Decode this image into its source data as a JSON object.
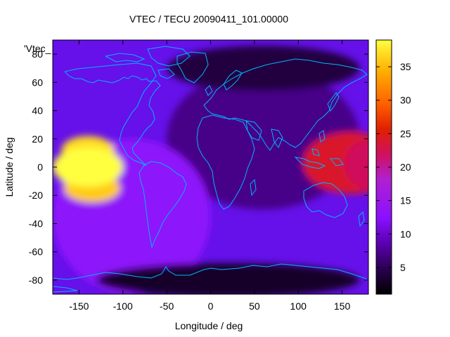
{
  "chart_data": {
    "type": "heatmap",
    "title": "VTEC / TECU 20090411_101.00000",
    "corner_label": "'Vtec_",
    "xlabel": "Longitude / deg",
    "ylabel": "Latitude / deg",
    "xlim": [
      -180,
      180
    ],
    "ylim": [
      -90,
      90
    ],
    "x_ticks": [
      -150,
      -100,
      -50,
      0,
      50,
      100,
      150
    ],
    "y_ticks": [
      -80,
      -60,
      -40,
      -20,
      0,
      20,
      40,
      60,
      80
    ],
    "colorbar": {
      "min": 1,
      "max": 39,
      "ticks": [
        5,
        10,
        15,
        20,
        25,
        30,
        35
      ],
      "palette": [
        "#000000",
        "#4b0082",
        "#8000ff",
        "#c000c0",
        "#ff0000",
        "#ff8000",
        "#ffd000",
        "#ffff60"
      ]
    },
    "grid": false,
    "legend": "none",
    "features": [
      {
        "name": "equatorial_crest_pacific",
        "lon": -140,
        "lat": 0,
        "value": 39
      },
      {
        "name": "crest_north_pacific",
        "lon": -140,
        "lat": 12,
        "value": 37
      },
      {
        "name": "crest_south_pacific",
        "lon": -135,
        "lat": -15,
        "value": 36
      },
      {
        "name": "anomaly_west_pacific",
        "lon": 160,
        "lat": 3,
        "value": 24
      },
      {
        "name": "day_side_background",
        "lon": -90,
        "lat": -35,
        "value": 13
      },
      {
        "name": "night_side_background",
        "lon": 60,
        "lat": 20,
        "value": 7
      },
      {
        "name": "polar_south_minimum",
        "lon": 20,
        "lat": -80,
        "value": 3
      },
      {
        "name": "polar_north_minimum",
        "lon": 60,
        "lat": 70,
        "value": 4
      }
    ]
  }
}
